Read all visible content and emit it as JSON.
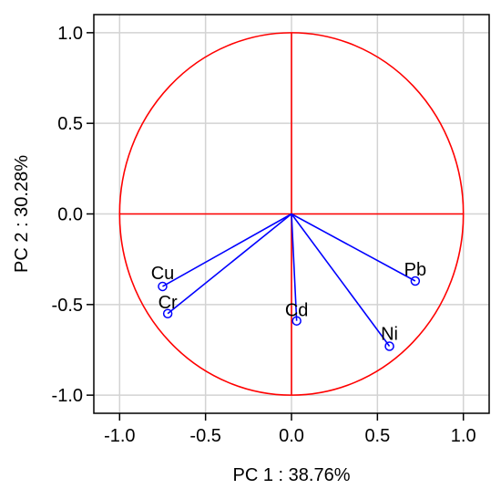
{
  "chart_data": {
    "type": "scatter",
    "title": "",
    "xlabel": "PC 1 : 38.76%",
    "ylabel": "PC 2 : 30.28%",
    "xlim": [
      -1.15,
      1.15
    ],
    "ylim": [
      -1.1,
      1.1
    ],
    "xticks": [
      -1.0,
      -0.5,
      0.0,
      0.5,
      1.0
    ],
    "xtick_labels": [
      "-1.0",
      "-0.5",
      "0.0",
      "0.5",
      "1.0"
    ],
    "yticks": [
      1.0,
      0.5,
      0.0,
      -0.5,
      -1.0
    ],
    "ytick_labels": [
      "1.0",
      "0.5",
      "0.0",
      "-0.5",
      "-1.0"
    ],
    "grid": true,
    "unit_circle": true,
    "vectors_from_origin": true,
    "points": [
      {
        "label": "Cu",
        "x": -0.75,
        "y": -0.4
      },
      {
        "label": "Cr",
        "x": -0.72,
        "y": -0.55
      },
      {
        "label": "Cd",
        "x": 0.03,
        "y": -0.59
      },
      {
        "label": "Ni",
        "x": 0.57,
        "y": -0.73
      },
      {
        "label": "Pb",
        "x": 0.72,
        "y": -0.37
      }
    ],
    "colors": {
      "vectors": "#0000ff",
      "circle": "#ff0000",
      "axes_lines": "#ff0000",
      "grid": "#d3d3d3",
      "frame": "#000000"
    }
  }
}
